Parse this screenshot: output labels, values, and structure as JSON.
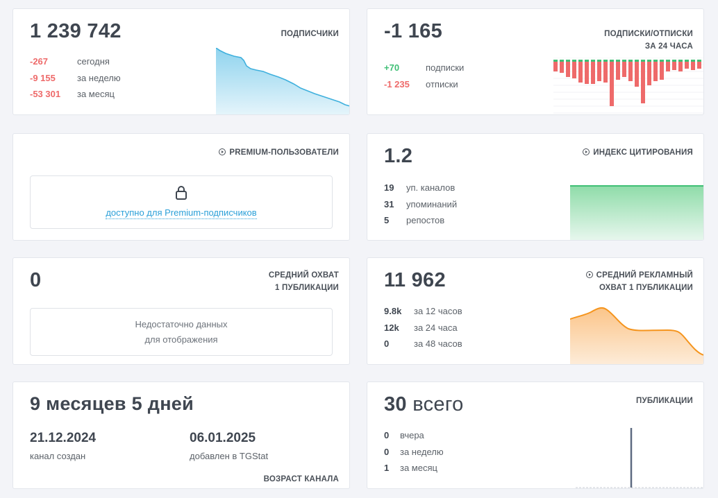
{
  "subscribers": {
    "value": "1 239 742",
    "label": "ПОДПИСЧИКИ",
    "rows": [
      {
        "value": "-267",
        "text": "сегодня"
      },
      {
        "value": "-9 155",
        "text": "за неделю"
      },
      {
        "value": "-53 301",
        "text": "за месяц"
      }
    ],
    "color": "#4db8e0"
  },
  "subs_unsubs": {
    "value": "-1 165",
    "label_line1": "ПОДПИСКИ/ОТПИСКИ",
    "label_line2": "ЗА 24 ЧАСА",
    "rows": [
      {
        "value": "+70",
        "text": "подписки"
      },
      {
        "value": "-1 235",
        "text": "отписки"
      }
    ],
    "colors": {
      "positive": "#3fbf75",
      "negative": "#ee6a6a"
    }
  },
  "premium": {
    "label": "PREMIUM-ПОЛЬЗОВАТЕЛИ",
    "locked_text": "доступно для Premium-подписчиков",
    "icon": "lock-icon"
  },
  "citation": {
    "value": "1.2",
    "label": "ИНДЕКС ЦИТИРОВАНИЯ",
    "rows": [
      {
        "value": "19",
        "text": "уп. каналов"
      },
      {
        "value": "31",
        "text": "упоминаний"
      },
      {
        "value": "5",
        "text": "репостов"
      }
    ],
    "color": "#3fbf75"
  },
  "avg_reach": {
    "value": "0",
    "label_line1": "СРЕДНИЙ ОХВАТ",
    "label_line2": "1 ПУБЛИКАЦИИ",
    "empty_line1": "Недостаточно данных",
    "empty_line2": "для отображения"
  },
  "ad_reach": {
    "value": "11 962",
    "label_line1": "СРЕДНИЙ РЕКЛАМНЫЙ",
    "label_line2": "ОХВАТ 1 ПУБЛИКАЦИИ",
    "rows": [
      {
        "value": "9.8k",
        "text": "за 12 часов"
      },
      {
        "value": "12k",
        "text": "за 24 часа"
      },
      {
        "value": "0",
        "text": "за 48 часов"
      }
    ],
    "color": "#f5951e"
  },
  "age": {
    "value": "9 месяцев 5 дней",
    "created_date": "21.12.2024",
    "created_text": "канал создан",
    "added_date": "06.01.2025",
    "added_text": "добавлен в TGStat",
    "label": "ВОЗРАСТ КАНАЛА"
  },
  "publications": {
    "value": "30",
    "value_suffix": "всего",
    "label": "ПУБЛИКАЦИИ",
    "rows": [
      {
        "value": "0",
        "text": "вчера"
      },
      {
        "value": "0",
        "text": "за неделю"
      },
      {
        "value": "1",
        "text": "за месяц"
      }
    ],
    "color": "#5d6a80"
  }
}
